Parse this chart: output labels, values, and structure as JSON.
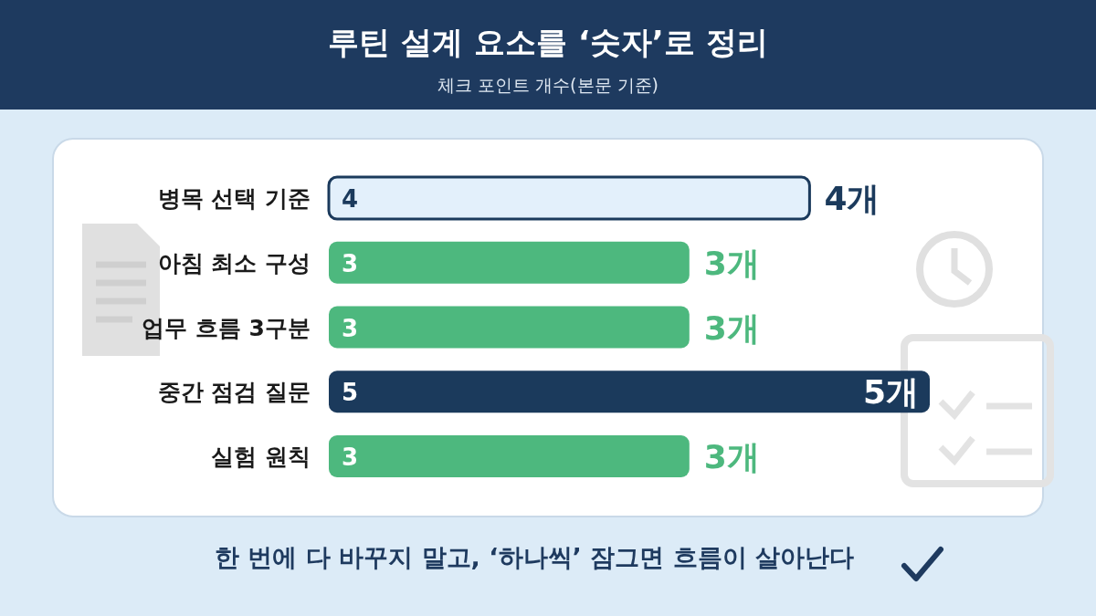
{
  "chart_data": {
    "type": "bar",
    "orientation": "horizontal",
    "title": "루틴 설계 요소를 ‘숫자’로 정리",
    "subtitle": "체크 포인트 개수(본문 기준)",
    "categories": [
      "병목 선택 기준",
      "아침 최소 구성",
      "업무 흐름 3구분",
      "중간 점검 질문",
      "실험 원칙"
    ],
    "values": [
      4,
      3,
      3,
      5,
      3
    ],
    "colors": [
      "#e3f0fb",
      "#4db87e",
      "#4db87e",
      "#1b3a5c",
      "#4db87e"
    ],
    "value_labels": [
      "4",
      "3",
      "3",
      "5",
      "3"
    ],
    "annotations": [
      {
        "text": "4개",
        "x": 4,
        "y": "병목 선택 기준"
      },
      {
        "text": "3개",
        "x": 3,
        "y": "아침 최소 구성"
      },
      {
        "text": "3개",
        "x": 3,
        "y": "업무 흐름 3구분"
      },
      {
        "text": "5개",
        "x": 5,
        "y": "중간 점검 질문"
      },
      {
        "text": "3개",
        "x": 3,
        "y": "실험 원칙"
      },
      "한 번에 다 바꾸지 말고, ‘하나씩’ 잠그면 흐름이 살아난다"
    ]
  }
}
